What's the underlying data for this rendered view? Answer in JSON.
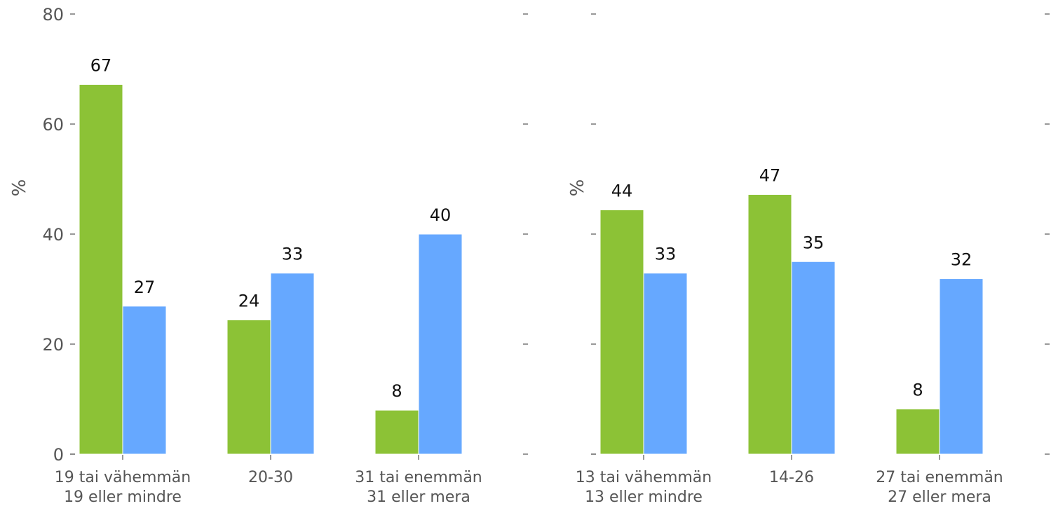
{
  "chart_data": [
    {
      "type": "bar",
      "ylabel": "%",
      "ylim": [
        0,
        80
      ],
      "yticks": [
        0,
        20,
        40,
        60,
        80
      ],
      "categories": [
        [
          "19 tai vähemmän",
          "19 eller mindre"
        ],
        [
          "20-30"
        ],
        [
          "31 tai enemmän",
          "31 eller mera"
        ]
      ],
      "series": [
        {
          "values": [
            67.2,
            24.4,
            8.0
          ],
          "labels": [
            "67",
            "24",
            "8"
          ]
        },
        {
          "values": [
            26.9,
            32.9,
            40.0
          ],
          "labels": [
            "27",
            "33",
            "40"
          ]
        }
      ],
      "grid": false
    },
    {
      "type": "bar",
      "ylabel": "%",
      "ylim": [
        0,
        80
      ],
      "yticks": [
        0,
        20,
        40,
        60,
        80
      ],
      "categories": [
        [
          "13 tai vähemmän",
          "13 eller mindre"
        ],
        [
          "14-26"
        ],
        [
          "27 tai enemmän",
          "27 eller mera"
        ]
      ],
      "series": [
        {
          "values": [
            44.4,
            47.2,
            8.2
          ],
          "labels": [
            "44",
            "47",
            "8"
          ]
        },
        {
          "values": [
            32.9,
            35.0,
            31.9
          ],
          "labels": [
            "33",
            "35",
            "32"
          ]
        }
      ],
      "grid": false
    }
  ],
  "colors": {
    "series": [
      "#8cc236",
      "#66a8ff"
    ],
    "axis": "#555555",
    "text": "#111111"
  }
}
